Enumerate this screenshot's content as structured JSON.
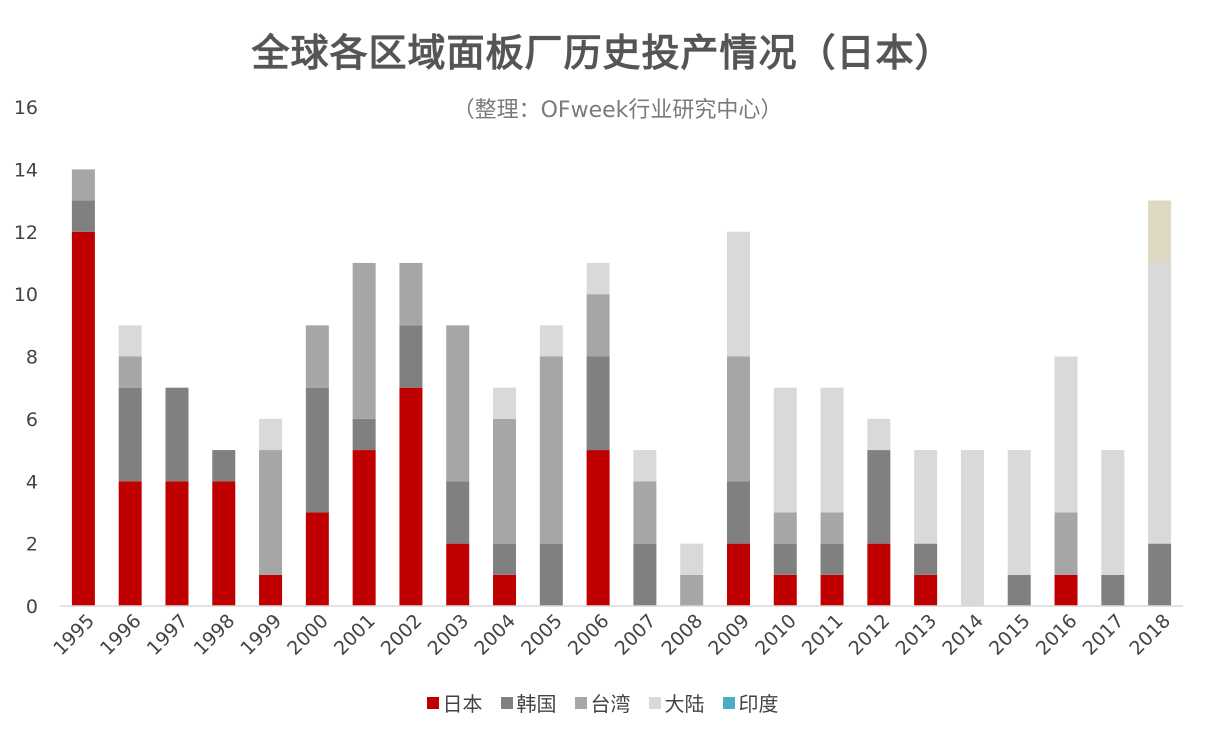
{
  "chart_data": {
    "type": "bar",
    "stacked": true,
    "title": "全球各区域面板厂历史投产情况（日本）",
    "subtitle": "（整理：OFweek行业研究中心）",
    "xlabel": "",
    "ylabel": "",
    "ylim": [
      0,
      16
    ],
    "yticks": [
      "0",
      "2",
      "4",
      "6",
      "8",
      "10",
      "12",
      "14",
      "16"
    ],
    "grid": false,
    "legend_position": "bottom",
    "categories": [
      "1995",
      "1996",
      "1997",
      "1998",
      "1999",
      "2000",
      "2001",
      "2002",
      "2003",
      "2004",
      "2005",
      "2006",
      "2007",
      "2008",
      "2009",
      "2010",
      "2011",
      "2012",
      "2013",
      "2014",
      "2015",
      "2016",
      "2017",
      "2018"
    ],
    "series": [
      {
        "name": "日本",
        "color": "#c00000",
        "values": [
          12,
          4,
          4,
          4,
          1,
          3,
          5,
          7,
          2,
          1,
          0,
          5,
          0,
          0,
          2,
          1,
          1,
          2,
          1,
          0,
          0,
          1,
          0,
          0
        ]
      },
      {
        "name": "韩国",
        "color": "#808080",
        "values": [
          1,
          3,
          3,
          1,
          0,
          4,
          1,
          2,
          2,
          1,
          2,
          3,
          2,
          0,
          2,
          1,
          1,
          3,
          1,
          0,
          1,
          0,
          1,
          2
        ]
      },
      {
        "name": "台湾",
        "color": "#a6a6a6",
        "values": [
          1,
          1,
          0,
          0,
          4,
          2,
          5,
          2,
          5,
          4,
          6,
          2,
          2,
          1,
          4,
          1,
          1,
          0,
          0,
          0,
          0,
          2,
          0,
          0
        ]
      },
      {
        "name": "大陆",
        "color": "#d9d9d9",
        "values": [
          0,
          1,
          0,
          0,
          1,
          0,
          0,
          0,
          0,
          1,
          1,
          1,
          1,
          1,
          4,
          4,
          4,
          1,
          3,
          5,
          4,
          5,
          4,
          9
        ]
      },
      {
        "name": "印度",
        "color": "#4bacc6",
        "values": [
          0,
          0,
          0,
          0,
          0,
          0,
          0,
          0,
          0,
          0,
          0,
          0,
          0,
          0,
          0,
          0,
          0,
          0,
          0,
          0,
          0,
          0,
          0,
          0
        ]
      },
      {
        "name": "",
        "color": "#ddd9c3",
        "values": [
          0,
          0,
          0,
          0,
          0,
          0,
          0,
          0,
          0,
          0,
          0,
          0,
          0,
          0,
          0,
          0,
          0,
          0,
          0,
          0,
          0,
          0,
          0,
          2
        ]
      }
    ]
  }
}
